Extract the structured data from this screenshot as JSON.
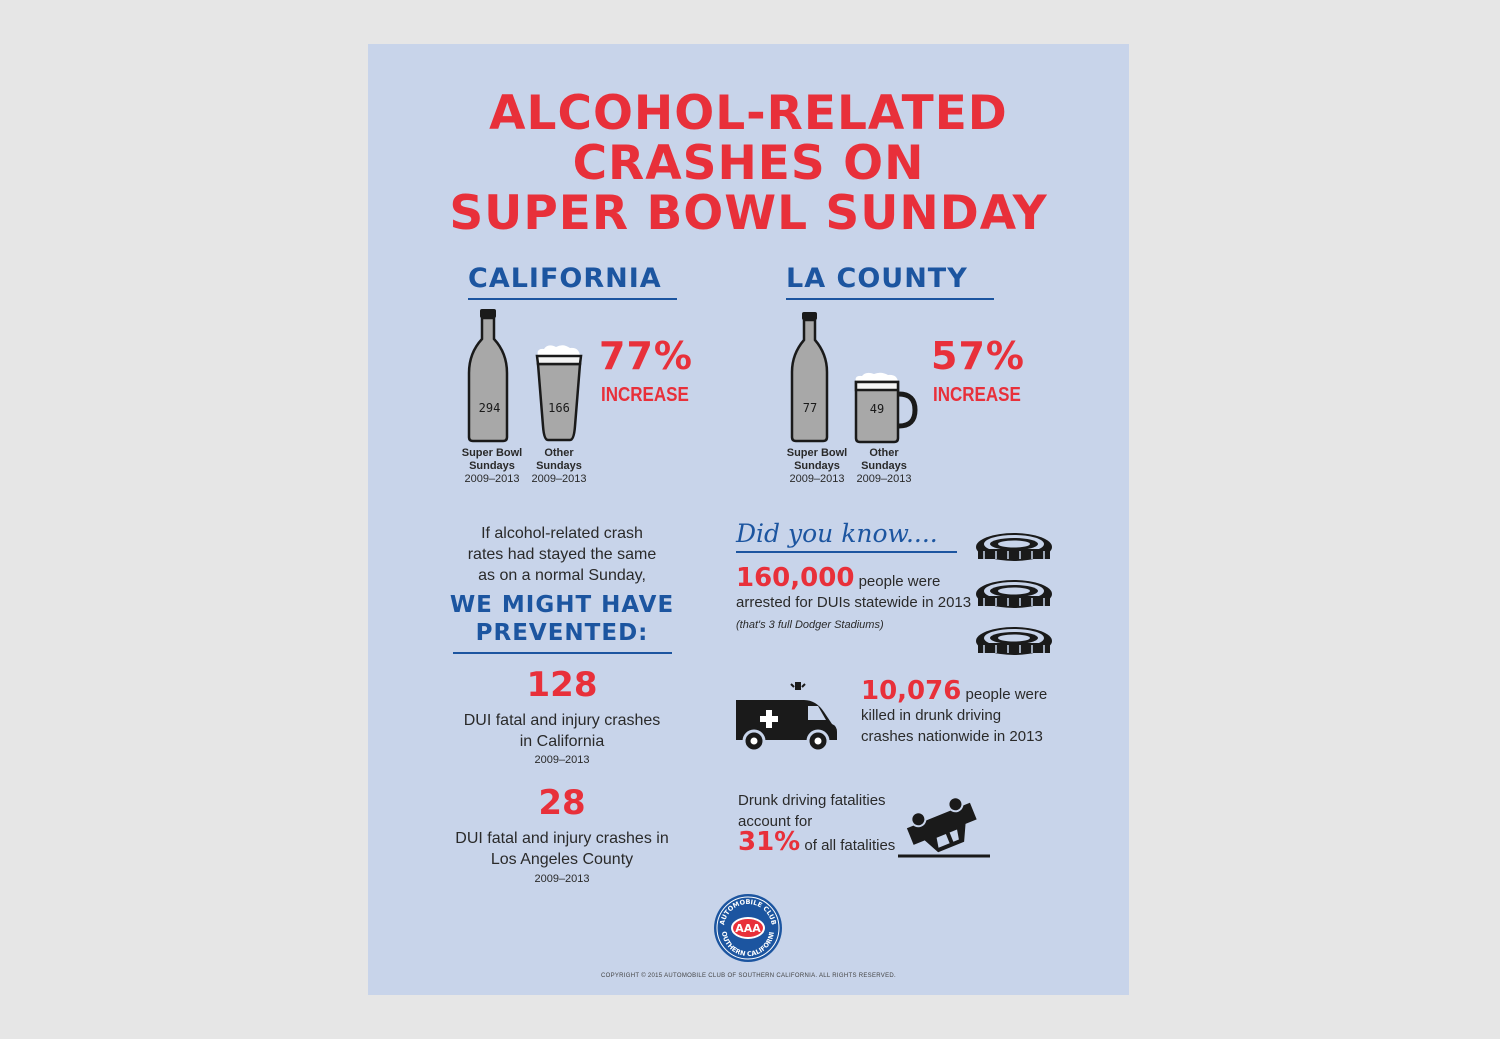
{
  "title": {
    "line1": "ALCOHOL-RELATED",
    "line2": "CRASHES ON",
    "line3": "SUPER BOWL SUNDAY"
  },
  "california": {
    "heading": "CALIFORNIA",
    "super_bowl_value": "294",
    "other_value": "166",
    "percent": "77%",
    "increase": "INCREASE",
    "super_bowl_label_1": "Super Bowl",
    "super_bowl_label_2": "Sundays",
    "other_label_1": "Other",
    "other_label_2": "Sundays",
    "years": "2009–2013"
  },
  "la_county": {
    "heading": "LA COUNTY",
    "super_bowl_value": "77",
    "other_value": "49",
    "percent": "57%",
    "increase": "INCREASE",
    "super_bowl_label_1": "Super Bowl",
    "super_bowl_label_2": "Sundays",
    "other_label_1": "Other",
    "other_label_2": "Sundays",
    "years": "2009–2013"
  },
  "prevented": {
    "intro_1": "If alcohol-related crash",
    "intro_2": "rates had stayed the same",
    "intro_3": "as on a normal Sunday,",
    "heading_1": "WE MIGHT HAVE",
    "heading_2": "PREVENTED:",
    "stat1_number": "128",
    "stat1_line1": "DUI fatal and injury crashes",
    "stat1_line2": "in California",
    "stat1_years": "2009–2013",
    "stat2_number": "28",
    "stat2_line1": "DUI fatal and injury crashes in",
    "stat2_line2": "Los Angeles County",
    "stat2_years": "2009–2013"
  },
  "did_you_know": {
    "heading": "Did you know....",
    "fact1_number": "160,000",
    "fact1_text_1": " people were",
    "fact1_text_2": "arrested for DUIs statewide in 2013",
    "fact1_note": "(that's 3 full Dodger Stadiums)",
    "fact2_number": "10,076",
    "fact2_text_1": " people were",
    "fact2_text_2": "killed in drunk driving",
    "fact2_text_3": "crashes nationwide in 2013",
    "fact3_text_1": "Drunk driving fatalities",
    "fact3_text_2": "account for",
    "fact3_number": "31%",
    "fact3_text_3": " of all fatalities"
  },
  "logo": {
    "top_text": "AUTOMOBILE CLUB",
    "bottom_text": "SOUTHERN CALIFORNIA",
    "center_text": "AAA"
  },
  "copyright": "COPYRIGHT © 2015 AUTOMOBILE CLUB OF SOUTHERN CALIFORNIA. ALL RIGHTS RESERVED.",
  "colors": {
    "background": "#c8d4ea",
    "red": "#e8303a",
    "blue": "#1c55a0",
    "glass_gray": "#a8a8a8",
    "dark": "#1a1a1a"
  },
  "icons": [
    "bottle-icon",
    "pint-glass-icon",
    "mug-icon",
    "stadium-icon",
    "ambulance-icon",
    "overturned-car-icon",
    "aaa-logo"
  ]
}
